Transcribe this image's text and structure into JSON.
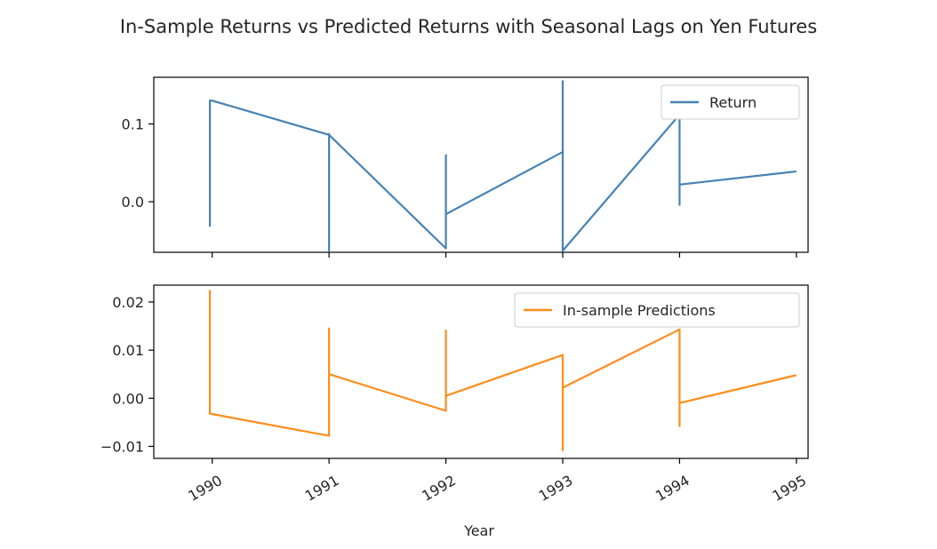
{
  "figure": {
    "title": "In-Sample Returns vs Predicted Returns with Seasonal Lags on Yen Futures"
  },
  "chart_data": [
    {
      "type": "line",
      "xlabel": "",
      "ylabel": "",
      "ylim": [
        -0.065,
        0.16
      ],
      "xlim": [
        1989.5,
        1995.1
      ],
      "yticks": [
        0.0,
        0.1
      ],
      "ytick_labels": [
        "0.0",
        "0.1"
      ],
      "xticks": [
        1990,
        1991,
        1992,
        1993,
        1994,
        1995
      ],
      "xtick_labels": [],
      "legend_position": "top-right",
      "grid": false,
      "series": [
        {
          "name": "Return",
          "color": "#4682b4",
          "x": [
            1989.98,
            1989.98,
            1990.0,
            1991.0,
            1991.0,
            1991.0,
            1991.0,
            1992.0,
            1992.0,
            1992.0,
            1992.0,
            1993.0,
            1993.0,
            1993.0,
            1993.0,
            1994.0,
            1994.0,
            1994.0,
            1994.0,
            1995.0
          ],
          "y": [
            -0.032,
            0.13,
            0.13,
            0.086,
            -0.063,
            0.087,
            0.086,
            -0.06,
            0.06,
            -0.016,
            -0.016,
            0.064,
            0.155,
            -0.063,
            -0.063,
            0.112,
            -0.004,
            0.072,
            0.022,
            0.039
          ]
        }
      ]
    },
    {
      "type": "line",
      "xlabel": "Year",
      "ylabel": "",
      "ylim": [
        -0.0125,
        0.0235
      ],
      "xlim": [
        1989.5,
        1995.1
      ],
      "yticks": [
        -0.01,
        0.0,
        0.01,
        0.02
      ],
      "ytick_labels": [
        "−0.01",
        "0.00",
        "0.01",
        "0.02"
      ],
      "xticks": [
        1990,
        1991,
        1992,
        1993,
        1994,
        1995
      ],
      "xtick_labels": [
        "1990",
        "1991",
        "1992",
        "1993",
        "1994",
        "1995"
      ],
      "legend_position": "top-right",
      "grid": false,
      "series": [
        {
          "name": "In-sample Predictions",
          "color": "#ff8c1a",
          "x": [
            1989.98,
            1989.98,
            1991.0,
            1991.0,
            1991.0,
            1991.0,
            1992.0,
            1992.0,
            1992.0,
            1992.0,
            1993.0,
            1993.0,
            1993.0,
            1993.0,
            1994.0,
            1994.0,
            1994.0,
            1994.0,
            1995.0
          ],
          "y": [
            0.0225,
            -0.0032,
            -0.0078,
            0.0145,
            0.004,
            0.005,
            -0.0026,
            0.0141,
            0.0003,
            0.0005,
            0.009,
            -0.0108,
            0.002,
            0.0022,
            0.0143,
            -0.0058,
            0.0075,
            -0.001,
            0.0048
          ]
        }
      ]
    }
  ]
}
